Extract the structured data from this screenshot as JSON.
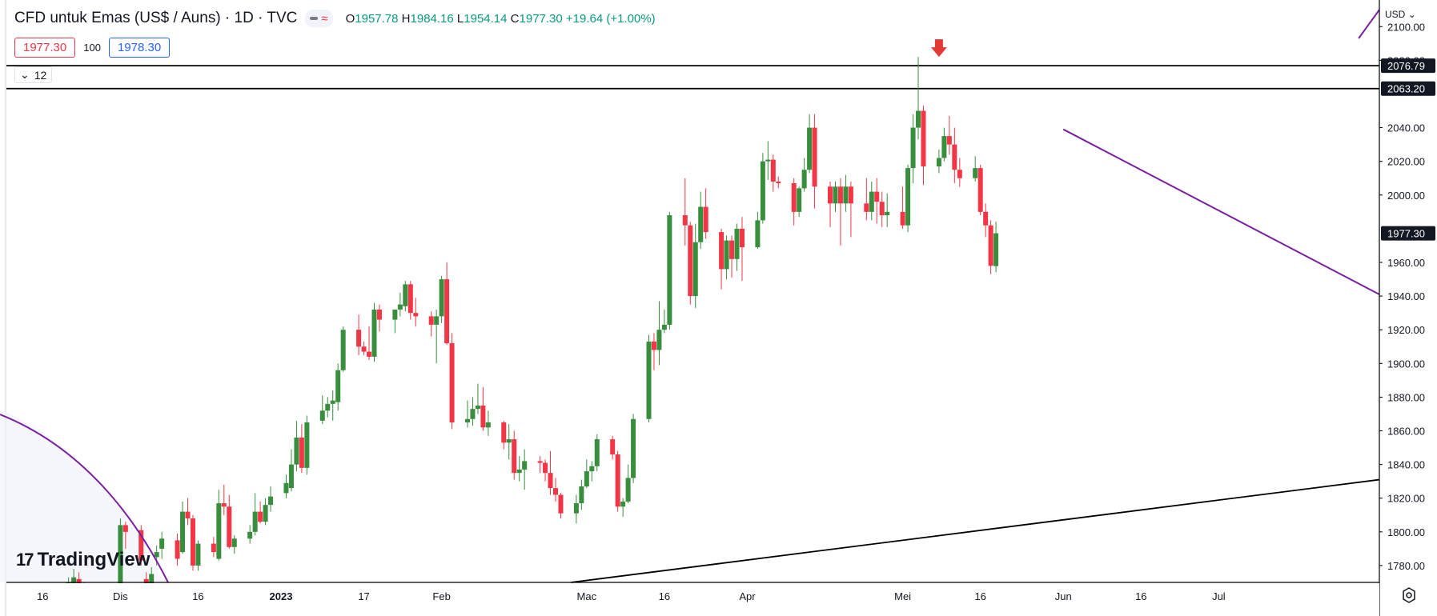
{
  "header": {
    "symbol_title": "CFD untuk Emas (US$ / Auns) · 1D · TVC",
    "ohlc": {
      "o_label": "O",
      "o": "1957.78",
      "h_label": "H",
      "h": "1984.16",
      "l_label": "L",
      "l": "1954.14",
      "c_label": "C",
      "c": "1977.30",
      "change": "+19.64 (+1.00%)"
    }
  },
  "quote": {
    "sell": "1977.30",
    "spread": "100",
    "buy": "1978.30"
  },
  "collapse_label": "12",
  "currency": "USD",
  "logo_text": "TradingView",
  "colors": {
    "up": "#388e3c",
    "down": "#f23645",
    "drawing": "#7b1fa2",
    "line": "#000000",
    "marker": "#e53935",
    "axis_text": "#131722"
  },
  "chart_data": {
    "type": "candlestick",
    "title": "CFD untuk Emas (US$ / Auns)",
    "interval": "1D",
    "y_axis_labels": [
      "2100.00",
      "2080.00",
      "2040.00",
      "2020.00",
      "2000.00",
      "1960.00",
      "1940.00",
      "1920.00",
      "1900.00",
      "1880.00",
      "1860.00",
      "1840.00",
      "1820.00",
      "1800.00",
      "1780.00"
    ],
    "x_axis_labels": [
      {
        "label": "16",
        "date": "2022-11-16"
      },
      {
        "label": "Dis",
        "date": "2022-12-01"
      },
      {
        "label": "16",
        "date": "2022-12-16"
      },
      {
        "label": "2023",
        "date": "2023-01-01"
      },
      {
        "label": "17",
        "date": "2023-01-17"
      },
      {
        "label": "Feb",
        "date": "2023-02-01"
      },
      {
        "label": "Mac",
        "date": "2023-03-01"
      },
      {
        "label": "16",
        "date": "2023-03-16"
      },
      {
        "label": "Apr",
        "date": "2023-04-01"
      },
      {
        "label": "Mei",
        "date": "2023-05-01"
      },
      {
        "label": "16",
        "date": "2023-05-16"
      },
      {
        "label": "Jun",
        "date": "2023-06-01"
      },
      {
        "label": "16",
        "date": "2023-06-16"
      },
      {
        "label": "Jul",
        "date": "2023-07-01"
      }
    ],
    "y_range": [
      1770,
      2112
    ],
    "x_range": [
      "2022-11-09",
      "2023-08-01"
    ],
    "price_tags": [
      {
        "value": "2076.79",
        "price": 2076.79,
        "style": "dark"
      },
      {
        "value": "2063.20",
        "price": 2063.2,
        "style": "dark"
      },
      {
        "value": "1977.30",
        "price": 1977.3,
        "style": "dark"
      }
    ],
    "horizontal_lines": [
      2076.79,
      2063.2
    ],
    "trend_line": {
      "from": {
        "date": "2023-02-26",
        "price": 1770
      },
      "to": {
        "date": "2023-08-01",
        "price": 1831
      }
    },
    "marker": {
      "date": "2023-05-08",
      "price": 2082,
      "shape": "down-arrow"
    },
    "purple_lines": [
      {
        "from": {
          "date": "2023-06-01",
          "price": 2039
        },
        "to": {
          "date": "2023-08-01",
          "price": 1941
        }
      },
      {
        "from": {
          "date": "2023-07-28",
          "price": 2093
        },
        "to": {
          "date": "2023-08-01",
          "price": 2110
        }
      }
    ],
    "candles": [
      [
        "2022-11-18",
        1753,
        1768,
        1750,
        1765
      ],
      [
        "2022-11-21",
        1760,
        1773,
        1756,
        1770
      ],
      [
        "2022-11-22",
        1768,
        1778,
        1766,
        1773
      ],
      [
        "2022-11-23",
        1772,
        1776,
        1762,
        1765
      ],
      [
        "2022-11-24",
        1760,
        1770,
        1755,
        1758
      ],
      [
        "2022-12-01",
        1762,
        1808,
        1758,
        1804
      ],
      [
        "2022-12-02",
        1804,
        1806,
        1790,
        1800
      ],
      [
        "2022-12-05",
        1801,
        1804,
        1780,
        1783
      ],
      [
        "2022-12-06",
        1772,
        1776,
        1762,
        1766
      ],
      [
        "2022-12-07",
        1766,
        1779,
        1764,
        1775
      ],
      [
        "2022-12-08",
        1785,
        1792,
        1780,
        1788
      ],
      [
        "2022-12-09",
        1790,
        1800,
        1784,
        1796
      ],
      [
        "2022-12-12",
        1795,
        1799,
        1780,
        1784
      ],
      [
        "2022-12-13",
        1788,
        1818,
        1787,
        1812
      ],
      [
        "2022-12-14",
        1812,
        1820,
        1804,
        1808
      ],
      [
        "2022-12-15",
        1808,
        1810,
        1777,
        1780
      ],
      [
        "2022-12-16",
        1780,
        1795,
        1777,
        1793
      ],
      [
        "2022-12-19",
        1793,
        1797,
        1785,
        1788
      ],
      [
        "2022-12-20",
        1784,
        1825,
        1783,
        1817
      ],
      [
        "2022-12-21",
        1817,
        1828,
        1810,
        1815
      ],
      [
        "2022-12-22",
        1815,
        1822,
        1790,
        1791
      ],
      [
        "2022-12-23",
        1791,
        1798,
        1787,
        1796
      ],
      [
        "2022-12-26",
        1796,
        1804,
        1793,
        1800
      ],
      [
        "2022-12-27",
        1800,
        1823,
        1798,
        1812
      ],
      [
        "2022-12-28",
        1812,
        1818,
        1805,
        1806
      ],
      [
        "2022-12-29",
        1806,
        1820,
        1804,
        1816
      ],
      [
        "2022-12-30",
        1816,
        1827,
        1812,
        1821
      ],
      [
        "2023-01-02",
        1823,
        1834,
        1820,
        1829
      ],
      [
        "2023-01-03",
        1826,
        1849,
        1824,
        1840
      ],
      [
        "2023-01-04",
        1840,
        1866,
        1836,
        1856
      ],
      [
        "2023-01-05",
        1856,
        1864,
        1835,
        1838
      ],
      [
        "2023-01-06",
        1838,
        1869,
        1834,
        1865
      ],
      [
        "2023-01-09",
        1866,
        1881,
        1864,
        1872
      ],
      [
        "2023-01-10",
        1872,
        1880,
        1868,
        1876
      ],
      [
        "2023-01-11",
        1876,
        1884,
        1866,
        1878
      ],
      [
        "2023-01-12",
        1877,
        1900,
        1872,
        1896
      ],
      [
        "2023-01-13",
        1896,
        1922,
        1895,
        1920
      ],
      [
        "2023-01-16",
        1920,
        1929,
        1905,
        1910
      ],
      [
        "2023-01-17",
        1910,
        1913,
        1905,
        1907
      ],
      [
        "2023-01-18",
        1907,
        1922,
        1902,
        1904
      ],
      [
        "2023-01-19",
        1904,
        1936,
        1901,
        1932
      ],
      [
        "2023-01-20",
        1932,
        1935,
        1919,
        1926
      ],
      [
        "2023-01-23",
        1926,
        1930,
        1918,
        1932
      ],
      [
        "2023-01-24",
        1932,
        1942,
        1928,
        1935
      ],
      [
        "2023-01-25",
        1934,
        1949,
        1931,
        1947
      ],
      [
        "2023-01-26",
        1947,
        1949,
        1926,
        1930
      ],
      [
        "2023-01-27",
        1930,
        1939,
        1922,
        1928
      ],
      [
        "2023-01-30",
        1928,
        1931,
        1916,
        1923
      ],
      [
        "2023-01-31",
        1923,
        1932,
        1900,
        1928
      ],
      [
        "2023-02-01",
        1928,
        1952,
        1924,
        1950
      ],
      [
        "2023-02-02",
        1950,
        1960,
        1911,
        1912
      ],
      [
        "2023-02-03",
        1912,
        1918,
        1861,
        1865
      ],
      [
        "2023-02-06",
        1865,
        1878,
        1862,
        1867
      ],
      [
        "2023-02-07",
        1867,
        1880,
        1863,
        1873
      ],
      [
        "2023-02-08",
        1873,
        1888,
        1870,
        1875
      ],
      [
        "2023-02-09",
        1875,
        1886,
        1860,
        1862
      ],
      [
        "2023-02-10",
        1862,
        1872,
        1857,
        1865
      ],
      [
        "2023-02-13",
        1865,
        1866,
        1849,
        1853
      ],
      [
        "2023-02-14",
        1853,
        1864,
        1843,
        1855
      ],
      [
        "2023-02-15",
        1855,
        1860,
        1831,
        1835
      ],
      [
        "2023-02-16",
        1835,
        1845,
        1830,
        1837
      ],
      [
        "2023-02-17",
        1837,
        1849,
        1825,
        1842
      ],
      [
        "2023-02-20",
        1842,
        1845,
        1835,
        1841
      ],
      [
        "2023-02-21",
        1841,
        1843,
        1830,
        1835
      ],
      [
        "2023-02-22",
        1835,
        1848,
        1822,
        1826
      ],
      [
        "2023-02-23",
        1826,
        1832,
        1818,
        1822
      ],
      [
        "2023-02-24",
        1822,
        1823,
        1808,
        1811
      ],
      [
        "2023-02-27",
        1811,
        1822,
        1805,
        1817
      ],
      [
        "2023-02-28",
        1817,
        1831,
        1813,
        1827
      ],
      [
        "2023-03-01",
        1827,
        1843,
        1826,
        1836
      ],
      [
        "2023-03-02",
        1836,
        1842,
        1830,
        1839
      ],
      [
        "2023-03-03",
        1839,
        1858,
        1836,
        1855
      ],
      [
        "2023-03-06",
        1855,
        1857,
        1843,
        1846
      ],
      [
        "2023-03-07",
        1846,
        1848,
        1812,
        1815
      ],
      [
        "2023-03-08",
        1815,
        1820,
        1809,
        1818
      ],
      [
        "2023-03-09",
        1818,
        1840,
        1817,
        1832
      ],
      [
        "2023-03-10",
        1832,
        1870,
        1829,
        1867
      ],
      [
        "2023-03-13",
        1867,
        1917,
        1865,
        1913
      ],
      [
        "2023-03-14",
        1913,
        1918,
        1896,
        1908
      ],
      [
        "2023-03-15",
        1908,
        1937,
        1899,
        1920
      ],
      [
        "2023-03-16",
        1920,
        1932,
        1918,
        1923
      ],
      [
        "2023-03-17",
        1923,
        1990,
        1920,
        1988
      ],
      [
        "2023-03-20",
        1988,
        2010,
        1970,
        1982
      ],
      [
        "2023-03-21",
        1982,
        1984,
        1935,
        1940
      ],
      [
        "2023-03-22",
        1940,
        1983,
        1933,
        1972
      ],
      [
        "2023-03-23",
        1972,
        2002,
        1968,
        1993
      ],
      [
        "2023-03-24",
        1993,
        2004,
        1974,
        1978
      ],
      [
        "2023-03-27",
        1978,
        1980,
        1944,
        1956
      ],
      [
        "2023-03-28",
        1956,
        1976,
        1950,
        1973
      ],
      [
        "2023-03-29",
        1973,
        1976,
        1951,
        1962
      ],
      [
        "2023-03-30",
        1962,
        1983,
        1955,
        1980
      ],
      [
        "2023-03-31",
        1980,
        1987,
        1949,
        1969
      ],
      [
        "2023-04-03",
        1969,
        1990,
        1968,
        1985
      ],
      [
        "2023-04-04",
        1985,
        2025,
        1983,
        2020
      ],
      [
        "2023-04-05",
        2020,
        2032,
        2009,
        2021
      ],
      [
        "2023-04-06",
        2021,
        2024,
        2002,
        2008
      ],
      [
        "2023-04-07",
        2008,
        2011,
        2004,
        2007
      ],
      [
        "2023-04-10",
        2007,
        2010,
        1982,
        1990
      ],
      [
        "2023-04-11",
        1990,
        2005,
        1987,
        2004
      ],
      [
        "2023-04-12",
        2004,
        2022,
        2002,
        2015
      ],
      [
        "2023-04-13",
        2015,
        2048,
        2013,
        2040
      ],
      [
        "2023-04-14",
        2040,
        2048,
        1992,
        2005
      ],
      [
        "2023-04-17",
        2005,
        2008,
        1981,
        1995
      ],
      [
        "2023-04-18",
        1995,
        2008,
        1990,
        2005
      ],
      [
        "2023-04-19",
        2005,
        2010,
        1970,
        1995
      ],
      [
        "2023-04-20",
        1995,
        2012,
        1990,
        2005
      ],
      [
        "2023-04-21",
        2005,
        2008,
        1975,
        1995
      ],
      [
        "2023-04-24",
        1995,
        2010,
        1985,
        1990
      ],
      [
        "2023-04-25",
        1990,
        2008,
        1985,
        2002
      ],
      [
        "2023-04-26",
        2002,
        2010,
        1983,
        1996
      ],
      [
        "2023-04-27",
        1996,
        2002,
        1981,
        1988
      ],
      [
        "2023-04-28",
        1988,
        2001,
        1981,
        1990
      ],
      [
        "2023-05-01",
        1990,
        2005,
        1980,
        1982
      ],
      [
        "2023-05-02",
        1982,
        2018,
        1978,
        2016
      ],
      [
        "2023-05-03",
        2016,
        2048,
        2007,
        2040
      ],
      [
        "2023-05-04",
        2040,
        2082,
        2033,
        2050
      ],
      [
        "2023-05-05",
        2050,
        2053,
        2006,
        2017
      ],
      [
        "2023-05-08",
        2017,
        2027,
        2013,
        2022
      ],
      [
        "2023-05-09",
        2022,
        2040,
        2020,
        2035
      ],
      [
        "2023-05-10",
        2035,
        2047,
        2024,
        2030
      ],
      [
        "2023-05-11",
        2030,
        2040,
        2007,
        2015
      ],
      [
        "2023-05-12",
        2015,
        2022,
        2005,
        2010
      ],
      [
        "2023-05-15",
        2010,
        2023,
        2008,
        2016
      ],
      [
        "2023-05-16",
        2016,
        2018,
        1988,
        1990
      ],
      [
        "2023-05-17",
        1990,
        1995,
        1975,
        1982
      ],
      [
        "2023-05-18",
        1982,
        1985,
        1953,
        1958
      ],
      [
        "2023-05-19",
        1957.78,
        1984.16,
        1954.14,
        1977.3
      ]
    ]
  }
}
